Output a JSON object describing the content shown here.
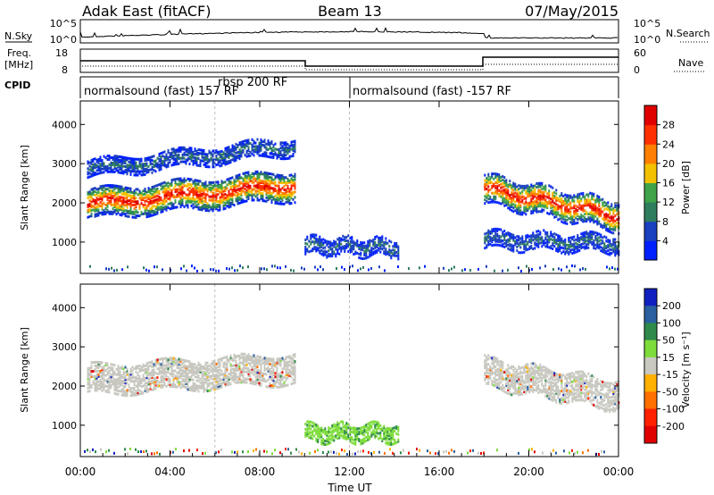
{
  "header": {
    "station": "Adak East (fitACF)",
    "beam": "Beam 13",
    "date": "07/May/2015"
  },
  "top_panels": {
    "nsky_label": "N.Sky",
    "nsky_ticks": [
      "10^5",
      "10^0"
    ],
    "nsearch_label": "N.Search",
    "nsearch_ticks": [
      "10^5",
      "10^0"
    ],
    "freq_label": "Freq.",
    "freq_unit": "[MHz]",
    "freq_ticks": [
      "18",
      "8"
    ],
    "nave_label": "Nave",
    "nave_ticks": [
      "60",
      "0"
    ],
    "cpid_label": "CPID",
    "cpid_segments": [
      {
        "start_hour": 0,
        "end_hour": 12,
        "label": "normalsound (fast) 157 RF"
      },
      {
        "start_hour": 6,
        "end_hour": 6,
        "label": "rbsp 200 RF"
      },
      {
        "start_hour": 12,
        "end_hour": 24,
        "label": "normalsound (fast) -157 RF"
      }
    ]
  },
  "chart_data": [
    {
      "type": "heatmap",
      "panel": "power",
      "ylabel": "Slant Range [km]",
      "yticks": [
        1000,
        2000,
        3000,
        4000
      ],
      "ylim": [
        200,
        4600
      ],
      "xlim": [
        0,
        24
      ],
      "colorbar": {
        "label": "Power [dB]",
        "ticks": [
          "4",
          "8",
          "12",
          "16",
          "20",
          "24",
          "28"
        ],
        "colors": [
          "#0020ff",
          "#1a3fbf",
          "#2e7d5e",
          "#3fa34a",
          "#f2c200",
          "#ff8000",
          "#ff3000",
          "#e00000"
        ]
      },
      "echo_bands": [
        {
          "name": "main",
          "start_hour": 0.3,
          "end_hour": 9.6,
          "range_km_at_start": 2000,
          "range_km_at_end": 2500,
          "peak_db": 28
        },
        {
          "name": "upper",
          "start_hour": 0.3,
          "end_hour": 9.6,
          "range_km_at_start": 2900,
          "range_km_at_end": 3500,
          "peak_db": 8
        },
        {
          "name": "near",
          "start_hour": 10.0,
          "end_hour": 14.2,
          "range_km_at_start": 950,
          "range_km_at_end": 900,
          "peak_db": 8
        },
        {
          "name": "late",
          "start_hour": 18.0,
          "end_hour": 24.0,
          "range_km_at_start": 2400,
          "range_km_at_end": 1700,
          "peak_db": 24
        },
        {
          "name": "late-near",
          "start_hour": 18.0,
          "end_hour": 24.0,
          "range_km_at_start": 1100,
          "range_km_at_end": 1000,
          "peak_db": 8
        }
      ]
    },
    {
      "type": "heatmap",
      "panel": "velocity",
      "ylabel": "Slant Range [km]",
      "yticks": [
        1000,
        2000,
        3000,
        4000
      ],
      "ylim": [
        200,
        4600
      ],
      "xlim": [
        0,
        24
      ],
      "xlabel": "Time UT",
      "xticks": [
        "00:00",
        "04:00",
        "08:00",
        "12:00",
        "16:00",
        "20:00",
        "00:00"
      ],
      "colorbar": {
        "label": "Velocity [m s⁻¹]",
        "ticks": [
          "200",
          "100",
          "50",
          "15",
          "-15",
          "-50",
          "-100",
          "-200"
        ],
        "colors": [
          "#1020c0",
          "#2a5fa0",
          "#2e8a4a",
          "#7ddc3a",
          "#c8c8c0",
          "#ffb000",
          "#ff7000",
          "#ff2000",
          "#e00000"
        ]
      },
      "echo_bands": [
        {
          "name": "main",
          "start_hour": 0.3,
          "end_hour": 9.6,
          "range_km_at_start": 2200,
          "range_km_at_end": 2500,
          "velocity_mps": 0
        },
        {
          "name": "near",
          "start_hour": 10.0,
          "end_hour": 14.2,
          "range_km_at_start": 850,
          "range_km_at_end": 850,
          "velocity_mps": 30
        },
        {
          "name": "late",
          "start_hour": 18.0,
          "end_hour": 24.0,
          "range_km_at_start": 2400,
          "range_km_at_end": 1800,
          "velocity_mps": 0
        }
      ]
    }
  ]
}
